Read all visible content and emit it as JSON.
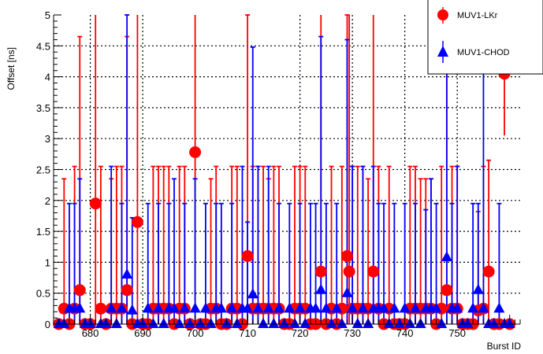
{
  "chart_data": {
    "type": "scatter",
    "title": "",
    "xlabel": "Burst ID",
    "ylabel": "Offset [ns]",
    "xlim": [
      673,
      762
    ],
    "ylim": [
      0,
      5
    ],
    "x_ticks": [
      680,
      690,
      700,
      710,
      720,
      730,
      740,
      750
    ],
    "y_ticks": [
      0,
      0.5,
      1,
      1.5,
      2,
      2.5,
      3,
      3.5,
      4,
      4.5,
      5
    ],
    "grid": true,
    "legend_position": "top-right",
    "colors": {
      "lkr": "#ff0000",
      "chod": "#0000ff",
      "error_lkr": "#ff0000",
      "error_chod": "#0000ff"
    },
    "series": [
      {
        "name": "MUV1-LKr",
        "marker": "circle",
        "points": [
          {
            "x": 674,
            "y": 0.0,
            "err": 0
          },
          {
            "x": 675,
            "y": 0.25,
            "err": 2.1
          },
          {
            "x": 676,
            "y": 0.0,
            "err": 0
          },
          {
            "x": 677,
            "y": 0.25,
            "err": 2.3
          },
          {
            "x": 678,
            "y": 0.55,
            "err": 4.1
          },
          {
            "x": 679,
            "y": 0.0,
            "err": 0
          },
          {
            "x": 680,
            "y": 0.0,
            "err": 0
          },
          {
            "x": 681,
            "y": 1.95,
            "err": 3.3
          },
          {
            "x": 682,
            "y": 0.25,
            "err": 2.3
          },
          {
            "x": 683,
            "y": 0.0,
            "err": 0
          },
          {
            "x": 684,
            "y": 0.25,
            "err": 2.1
          },
          {
            "x": 685,
            "y": 0.25,
            "err": 2.3
          },
          {
            "x": 686,
            "y": 0.25,
            "err": 2.3
          },
          {
            "x": 687,
            "y": 0.55,
            "err": 4.1
          },
          {
            "x": 688,
            "y": 0.0,
            "err": 0
          },
          {
            "x": 689,
            "y": 1.65,
            "err": 3.4
          },
          {
            "x": 690,
            "y": 0.0,
            "err": 0
          },
          {
            "x": 691,
            "y": 0.0,
            "err": 0
          },
          {
            "x": 692,
            "y": 0.25,
            "err": 2.3
          },
          {
            "x": 693,
            "y": 0.25,
            "err": 2.3
          },
          {
            "x": 694,
            "y": 0.25,
            "err": 2.3
          },
          {
            "x": 695,
            "y": 0.25,
            "err": 2.3
          },
          {
            "x": 696,
            "y": 0.0,
            "err": 0
          },
          {
            "x": 697,
            "y": 0.25,
            "err": 2.3
          },
          {
            "x": 698,
            "y": 0.25,
            "err": 2.3
          },
          {
            "x": 699,
            "y": 0.0,
            "err": 0
          },
          {
            "x": 700,
            "y": 2.78,
            "err": 2.4
          },
          {
            "x": 701,
            "y": 0.0,
            "err": 0
          },
          {
            "x": 702,
            "y": 0.0,
            "err": 0
          },
          {
            "x": 703,
            "y": 0.25,
            "err": 2.1
          },
          {
            "x": 704,
            "y": 0.25,
            "err": 2.3
          },
          {
            "x": 705,
            "y": 0.0,
            "err": 0
          },
          {
            "x": 706,
            "y": 0.0,
            "err": 0
          },
          {
            "x": 707,
            "y": 0.25,
            "err": 2.3
          },
          {
            "x": 708,
            "y": 0.25,
            "err": 2.3
          },
          {
            "x": 709,
            "y": 0.0,
            "err": 0
          },
          {
            "x": 710,
            "y": 1.1,
            "err": 3.9
          },
          {
            "x": 711,
            "y": 0.25,
            "err": 2.3
          },
          {
            "x": 712,
            "y": 0.25,
            "err": 2.3
          },
          {
            "x": 713,
            "y": 0.25,
            "err": 2.3
          },
          {
            "x": 714,
            "y": 0.25,
            "err": 2.1
          },
          {
            "x": 715,
            "y": 0.25,
            "err": 2.3
          },
          {
            "x": 716,
            "y": 0.25,
            "err": 2.3
          },
          {
            "x": 717,
            "y": 0.0,
            "err": 0
          },
          {
            "x": 718,
            "y": 0.0,
            "err": 0
          },
          {
            "x": 719,
            "y": 0.25,
            "err": 2.3
          },
          {
            "x": 720,
            "y": 0.25,
            "err": 2.3
          },
          {
            "x": 721,
            "y": 0.25,
            "err": 2.3
          },
          {
            "x": 722,
            "y": 0.0,
            "err": 0
          },
          {
            "x": 723,
            "y": 0.0,
            "err": 0
          },
          {
            "x": 724,
            "y": 0.85,
            "err": 4.2
          },
          {
            "x": 725,
            "y": 0.0,
            "err": 0
          },
          {
            "x": 726,
            "y": 0.25,
            "err": 2.3
          },
          {
            "x": 727,
            "y": 0.0,
            "err": 0
          },
          {
            "x": 728,
            "y": 0.25,
            "err": 2.3
          },
          {
            "x": 729,
            "y": 1.1,
            "err": 3.9
          },
          {
            "x": 729.4,
            "y": 0.85,
            "err": 4.2
          },
          {
            "x": 730,
            "y": 0.25,
            "err": 2.3
          },
          {
            "x": 731,
            "y": 0.25,
            "err": 2.3
          },
          {
            "x": 732,
            "y": 0.25,
            "err": 2.3
          },
          {
            "x": 733,
            "y": 0.25,
            "err": 2.1
          },
          {
            "x": 734,
            "y": 0.85,
            "err": 4.2
          },
          {
            "x": 735,
            "y": 0.25,
            "err": 2.3
          },
          {
            "x": 736,
            "y": 0.0,
            "err": 0
          },
          {
            "x": 737,
            "y": 0.25,
            "err": 2.3
          },
          {
            "x": 738,
            "y": 0.0,
            "err": 0
          },
          {
            "x": 739,
            "y": 0.0,
            "err": 0
          },
          {
            "x": 740,
            "y": 0.0,
            "err": 0
          },
          {
            "x": 741,
            "y": 0.25,
            "err": 2.3
          },
          {
            "x": 742,
            "y": 0.25,
            "err": 2.3
          },
          {
            "x": 743,
            "y": 0.25,
            "err": 2.1
          },
          {
            "x": 744,
            "y": 0.25,
            "err": 2.1
          },
          {
            "x": 745,
            "y": 0.25,
            "err": 2.1
          },
          {
            "x": 746,
            "y": 0.0,
            "err": 0
          },
          {
            "x": 747,
            "y": 0.25,
            "err": 2.3
          },
          {
            "x": 748,
            "y": 0.55,
            "err": 4.1
          },
          {
            "x": 749,
            "y": 0.25,
            "err": 2.3
          },
          {
            "x": 750,
            "y": 0.25,
            "err": 2.3
          },
          {
            "x": 751,
            "y": 0.0,
            "err": 0
          },
          {
            "x": 752,
            "y": 0.0,
            "err": 0
          },
          {
            "x": 753,
            "y": 0.0,
            "err": 0
          },
          {
            "x": 754,
            "y": 0.22,
            "err": 1.6
          },
          {
            "x": 755,
            "y": 0.25,
            "err": 2.3
          },
          {
            "x": 756,
            "y": 0.85,
            "err": 1.8
          },
          {
            "x": 757,
            "y": 0.0,
            "err": 0
          },
          {
            "x": 758,
            "y": 0.0,
            "err": 0
          },
          {
            "x": 759,
            "y": 4.05,
            "err": 1.0
          },
          {
            "x": 760,
            "y": 0.0,
            "err": 0
          }
        ]
      },
      {
        "name": "MUV1-CHOD",
        "marker": "triangle",
        "points": [
          {
            "x": 674,
            "y": 0.0,
            "err": 0
          },
          {
            "x": 675,
            "y": 0.0,
            "err": 0
          },
          {
            "x": 676,
            "y": 0.25,
            "err": 1.7
          },
          {
            "x": 677,
            "y": 0.25,
            "err": 1.7
          },
          {
            "x": 678,
            "y": 0.25,
            "err": 2.1
          },
          {
            "x": 679,
            "y": 0.0,
            "err": 0
          },
          {
            "x": 680,
            "y": 0.0,
            "err": 0
          },
          {
            "x": 682,
            "y": 0.0,
            "err": 0
          },
          {
            "x": 683,
            "y": 0.0,
            "err": 0
          },
          {
            "x": 684,
            "y": 0.25,
            "err": 2.3
          },
          {
            "x": 685,
            "y": 0.0,
            "err": 0
          },
          {
            "x": 686,
            "y": 0.25,
            "err": 1.7
          },
          {
            "x": 687,
            "y": 0.8,
            "err": 4.2
          },
          {
            "x": 688,
            "y": 0.22,
            "err": 1.5
          },
          {
            "x": 689,
            "y": 0.0,
            "err": 0
          },
          {
            "x": 690,
            "y": 0.0,
            "err": 0
          },
          {
            "x": 691,
            "y": 0.25,
            "err": 1.7
          },
          {
            "x": 692,
            "y": 0.0,
            "err": 0
          },
          {
            "x": 693,
            "y": 0.25,
            "err": 1.7
          },
          {
            "x": 694,
            "y": 0.0,
            "err": 0
          },
          {
            "x": 695,
            "y": 0.25,
            "err": 1.7
          },
          {
            "x": 696,
            "y": 0.25,
            "err": 2.1
          },
          {
            "x": 697,
            "y": 0.0,
            "err": 0
          },
          {
            "x": 698,
            "y": 0.25,
            "err": 1.7
          },
          {
            "x": 699,
            "y": 0.0,
            "err": 0
          },
          {
            "x": 700,
            "y": 0.25,
            "err": 2.1
          },
          {
            "x": 701,
            "y": 0.0,
            "err": 0
          },
          {
            "x": 702,
            "y": 0.25,
            "err": 1.7
          },
          {
            "x": 703,
            "y": 0.0,
            "err": 0
          },
          {
            "x": 704,
            "y": 0.25,
            "err": 1.7
          },
          {
            "x": 705,
            "y": 0.25,
            "err": 1.7
          },
          {
            "x": 706,
            "y": 0.0,
            "err": 0
          },
          {
            "x": 707,
            "y": 0.25,
            "err": 1.7
          },
          {
            "x": 708,
            "y": 0.0,
            "err": 0
          },
          {
            "x": 709,
            "y": 0.25,
            "err": 2.3
          },
          {
            "x": 710,
            "y": 0.25,
            "err": 1.4
          },
          {
            "x": 711,
            "y": 0.48,
            "err": 4.0
          },
          {
            "x": 712,
            "y": 0.25,
            "err": 2.3
          },
          {
            "x": 713,
            "y": 0.0,
            "err": 0
          },
          {
            "x": 714,
            "y": 0.25,
            "err": 2.3
          },
          {
            "x": 715,
            "y": 0.0,
            "err": 0
          },
          {
            "x": 716,
            "y": 0.25,
            "err": 1.7
          },
          {
            "x": 717,
            "y": 0.0,
            "err": 0
          },
          {
            "x": 718,
            "y": 0.25,
            "err": 1.7
          },
          {
            "x": 719,
            "y": 0.0,
            "err": 0
          },
          {
            "x": 720,
            "y": 0.25,
            "err": 1.7
          },
          {
            "x": 721,
            "y": 0.0,
            "err": 0
          },
          {
            "x": 722,
            "y": 0.25,
            "err": 1.7
          },
          {
            "x": 723,
            "y": 0.25,
            "err": 1.7
          },
          {
            "x": 724,
            "y": 0.55,
            "err": 4.1
          },
          {
            "x": 725,
            "y": 0.25,
            "err": 1.7
          },
          {
            "x": 726,
            "y": 0.0,
            "err": 0
          },
          {
            "x": 727,
            "y": 0.25,
            "err": 1.7
          },
          {
            "x": 728,
            "y": 0.0,
            "err": 0
          },
          {
            "x": 729,
            "y": 0.5,
            "err": 4.1
          },
          {
            "x": 730,
            "y": 0.25,
            "err": 2.3
          },
          {
            "x": 731,
            "y": 0.0,
            "err": 0
          },
          {
            "x": 732,
            "y": 0.25,
            "err": 2.3
          },
          {
            "x": 733,
            "y": 0.0,
            "err": 0
          },
          {
            "x": 734,
            "y": 0.25,
            "err": 2.3
          },
          {
            "x": 735,
            "y": 0.25,
            "err": 1.7
          },
          {
            "x": 736,
            "y": 0.25,
            "err": 1.7
          },
          {
            "x": 737,
            "y": 0.0,
            "err": 0
          },
          {
            "x": 738,
            "y": 0.25,
            "err": 1.7
          },
          {
            "x": 739,
            "y": 0.0,
            "err": 0
          },
          {
            "x": 740,
            "y": 0.25,
            "err": 1.7
          },
          {
            "x": 741,
            "y": 0.0,
            "err": 0
          },
          {
            "x": 742,
            "y": 0.25,
            "err": 1.7
          },
          {
            "x": 743,
            "y": 0.0,
            "err": 0
          },
          {
            "x": 744,
            "y": 0.25,
            "err": 1.6
          },
          {
            "x": 745,
            "y": 0.25,
            "err": 2.1
          },
          {
            "x": 746,
            "y": 0.25,
            "err": 1.7
          },
          {
            "x": 747,
            "y": 0.0,
            "err": 0
          },
          {
            "x": 748,
            "y": 1.08,
            "err": 3.9
          },
          {
            "x": 749,
            "y": 0.25,
            "err": 1.7
          },
          {
            "x": 750,
            "y": 0.25,
            "err": 2.3
          },
          {
            "x": 751,
            "y": 0.0,
            "err": 0
          },
          {
            "x": 752,
            "y": 0.0,
            "err": 0
          },
          {
            "x": 753,
            "y": 0.25,
            "err": 1.7
          },
          {
            "x": 754,
            "y": 0.55,
            "err": 1.4
          },
          {
            "x": 755,
            "y": 0.25,
            "err": 4.5
          },
          {
            "x": 756,
            "y": 0.0,
            "err": 0
          },
          {
            "x": 757,
            "y": 0.0,
            "err": 0
          },
          {
            "x": 758,
            "y": 0.25,
            "err": 1.7
          },
          {
            "x": 759,
            "y": 0.0,
            "err": 0
          },
          {
            "x": 760,
            "y": 0.0,
            "err": 0
          }
        ]
      }
    ]
  }
}
